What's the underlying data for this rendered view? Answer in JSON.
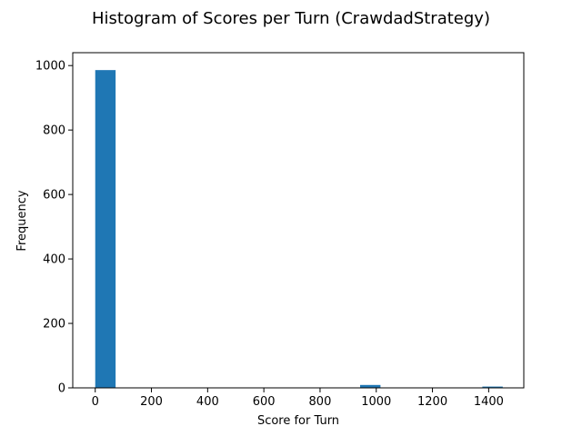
{
  "chart_data": {
    "type": "bar",
    "title": "Histogram of Scores per Turn (CrawdadStrategy)",
    "xlabel": "Score for Turn",
    "ylabel": "Frequency",
    "xlim": [
      -80,
      1525
    ],
    "ylim": [
      0,
      1040
    ],
    "xticks": [
      0,
      200,
      400,
      600,
      800,
      1000,
      1200,
      1400
    ],
    "yticks": [
      0,
      200,
      400,
      600,
      800,
      1000
    ],
    "bin_edges": [
      0,
      72.5,
      145,
      217.5,
      290,
      362.5,
      435,
      507.5,
      580,
      652.5,
      725,
      797.5,
      870,
      942.5,
      1015,
      1087.5,
      1160,
      1232.5,
      1305,
      1377.5,
      1450
    ],
    "values": [
      986,
      0,
      0,
      0,
      0,
      0,
      0,
      0,
      0,
      0,
      0,
      0,
      0,
      9,
      0,
      0,
      0,
      0,
      0,
      4
    ],
    "bar_color": "#1f77b4",
    "grid": false,
    "legend": "none"
  }
}
